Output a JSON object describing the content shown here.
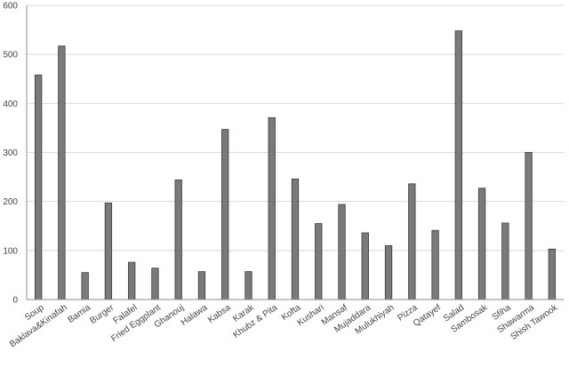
{
  "chart_data": {
    "type": "bar",
    "title": "",
    "xlabel": "",
    "ylabel": "",
    "categories": [
      "Soup",
      "Baklava&Kinafah",
      "Bamia",
      "Burger",
      "Falafel",
      "Fried Eggplant",
      "Ghanouj",
      "Halawa",
      "Kabsa",
      "Karak",
      "Khubz & Pita",
      "Kofta",
      "Kushari",
      "Mansaf",
      "Mujaddara",
      "Mulukhiyah",
      "Pizza",
      "Qatayef",
      "Salad",
      "Sambosak",
      "Sfiha",
      "Shawarma",
      "Shish Tawook"
    ],
    "values": [
      458,
      517,
      55,
      197,
      76,
      64,
      244,
      57,
      347,
      57,
      371,
      246,
      155,
      194,
      136,
      110,
      236,
      141,
      548,
      227,
      156,
      300,
      103
    ],
    "ylim": [
      0,
      600
    ],
    "yticks": [
      0,
      100,
      200,
      300,
      400,
      500,
      600
    ],
    "grid": true,
    "legend": "none",
    "bar_color": "#7a7a7a"
  }
}
